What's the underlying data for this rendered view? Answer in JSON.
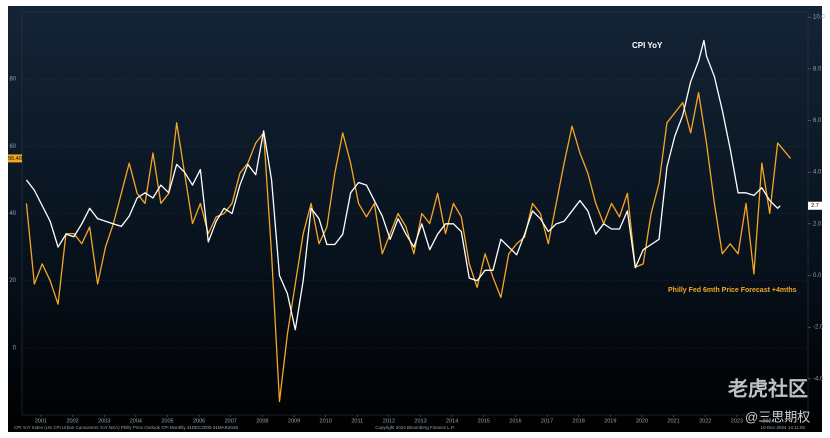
{
  "chart_data": {
    "type": "line",
    "xlim": [
      2000.9,
      2025.75
    ],
    "xticks": [
      {
        "value": 2001.5,
        "label": "2001"
      },
      {
        "value": 2002.5,
        "label": "2002"
      },
      {
        "value": 2003.5,
        "label": "2003"
      },
      {
        "value": 2004.5,
        "label": "2004"
      },
      {
        "value": 2005.5,
        "label": "2005"
      },
      {
        "value": 2006.5,
        "label": "2006"
      },
      {
        "value": 2007.5,
        "label": "2007"
      },
      {
        "value": 2008.5,
        "label": "2008"
      },
      {
        "value": 2009.5,
        "label": "2009"
      },
      {
        "value": 2010.5,
        "label": "2010"
      },
      {
        "value": 2011.5,
        "label": "2011"
      },
      {
        "value": 2012.5,
        "label": "2012"
      },
      {
        "value": 2013.5,
        "label": "2013"
      },
      {
        "value": 2014.5,
        "label": "2014"
      },
      {
        "value": 2015.5,
        "label": "2015"
      },
      {
        "value": 2016.5,
        "label": "2016"
      },
      {
        "value": 2017.5,
        "label": "2017"
      },
      {
        "value": 2018.5,
        "label": "2018"
      },
      {
        "value": 2019.5,
        "label": "2019"
      },
      {
        "value": 2020.5,
        "label": "2020"
      },
      {
        "value": 2021.5,
        "label": "2021"
      },
      {
        "value": 2022.5,
        "label": "2022"
      },
      {
        "value": 2023.5,
        "label": "2023"
      },
      {
        "value": 2024.5,
        "label": "2024"
      }
    ],
    "ylim": [
      -20,
      100
    ],
    "yticks": [
      0,
      20,
      40,
      60,
      80
    ],
    "y2lim": [
      -5.4,
      10.2
    ],
    "y2ticks": [
      {
        "value": -4,
        "label": "-4.0"
      },
      {
        "value": -2,
        "label": "-2.0"
      },
      {
        "value": 0,
        "label": "0.0"
      },
      {
        "value": 2,
        "label": "2.0"
      },
      {
        "value": 4,
        "label": "4.0"
      },
      {
        "value": 6,
        "label": "6.0"
      },
      {
        "value": 8,
        "label": "8.0"
      },
      {
        "value": 10,
        "label": "10.0"
      }
    ],
    "grid": true,
    "series": [
      {
        "name": "CPI YoY",
        "color": "#ffffff",
        "axis": "y2",
        "current": {
          "value": 2.7,
          "label": "2.7"
        },
        "x": [
          2001.04,
          2001.29,
          2001.54,
          2001.79,
          2002.04,
          2002.29,
          2002.54,
          2002.79,
          2003.04,
          2003.29,
          2003.54,
          2003.79,
          2004.04,
          2004.29,
          2004.54,
          2004.79,
          2005.04,
          2005.29,
          2005.54,
          2005.79,
          2006.04,
          2006.29,
          2006.54,
          2006.79,
          2007.04,
          2007.29,
          2007.54,
          2007.79,
          2008.04,
          2008.29,
          2008.54,
          2008.79,
          2009.04,
          2009.29,
          2009.54,
          2009.79,
          2010.04,
          2010.29,
          2010.54,
          2010.79,
          2011.04,
          2011.29,
          2011.54,
          2011.79,
          2012.04,
          2012.29,
          2012.54,
          2012.79,
          2013.04,
          2013.29,
          2013.54,
          2013.79,
          2014.04,
          2014.29,
          2014.54,
          2014.79,
          2015.04,
          2015.29,
          2015.54,
          2015.79,
          2016.04,
          2016.29,
          2016.54,
          2016.79,
          2017.04,
          2017.29,
          2017.54,
          2017.79,
          2018.04,
          2018.29,
          2018.54,
          2018.79,
          2019.04,
          2019.29,
          2019.54,
          2019.79,
          2020.04,
          2020.29,
          2020.54,
          2020.79,
          2021.04,
          2021.29,
          2021.54,
          2021.79,
          2022.04,
          2022.29,
          2022.46,
          2022.54,
          2022.79,
          2023.04,
          2023.29,
          2023.54,
          2023.79,
          2024.04,
          2024.29,
          2024.54,
          2024.79,
          2024.87
        ],
        "values": [
          3.7,
          3.3,
          2.7,
          2.1,
          1.1,
          1.6,
          1.5,
          2.0,
          2.6,
          2.2,
          2.1,
          2.0,
          1.9,
          2.3,
          3.0,
          3.2,
          3.0,
          3.5,
          3.2,
          4.3,
          4.0,
          3.5,
          4.1,
          1.3,
          2.1,
          2.6,
          2.4,
          3.5,
          4.3,
          3.9,
          5.6,
          3.7,
          0.0,
          -0.7,
          -2.1,
          -0.2,
          2.6,
          2.2,
          1.2,
          1.2,
          1.6,
          3.2,
          3.6,
          3.5,
          2.9,
          2.3,
          1.4,
          2.2,
          1.6,
          1.1,
          2.0,
          1.0,
          1.6,
          2.0,
          2.0,
          1.7,
          -0.1,
          -0.2,
          0.2,
          0.2,
          1.4,
          1.1,
          0.8,
          1.6,
          2.5,
          2.2,
          1.7,
          2.0,
          2.1,
          2.5,
          2.9,
          2.5,
          1.6,
          2.0,
          1.8,
          1.8,
          2.5,
          0.3,
          1.0,
          1.2,
          1.4,
          4.2,
          5.4,
          6.2,
          7.5,
          8.3,
          9.1,
          8.5,
          7.7,
          6.4,
          4.9,
          3.2,
          3.2,
          3.1,
          3.4,
          2.9,
          2.6,
          2.7
        ]
      },
      {
        "name": "Philly Fed 6mth Price Forecast +4mths",
        "color": "#f5a623",
        "axis": "y",
        "current": {
          "value": 56.4,
          "label": "56.40"
        },
        "x": [
          2001.04,
          2001.29,
          2001.54,
          2001.79,
          2002.04,
          2002.29,
          2002.54,
          2002.79,
          2003.04,
          2003.29,
          2003.54,
          2003.79,
          2004.04,
          2004.29,
          2004.54,
          2004.79,
          2005.04,
          2005.29,
          2005.54,
          2005.79,
          2006.04,
          2006.29,
          2006.54,
          2006.79,
          2007.04,
          2007.29,
          2007.54,
          2007.79,
          2008.04,
          2008.29,
          2008.54,
          2008.79,
          2009.04,
          2009.29,
          2009.54,
          2009.79,
          2010.04,
          2010.29,
          2010.54,
          2010.79,
          2011.04,
          2011.29,
          2011.54,
          2011.79,
          2012.04,
          2012.29,
          2012.54,
          2012.79,
          2013.04,
          2013.29,
          2013.54,
          2013.79,
          2014.04,
          2014.29,
          2014.54,
          2014.79,
          2015.04,
          2015.29,
          2015.54,
          2015.79,
          2016.04,
          2016.29,
          2016.54,
          2016.79,
          2017.04,
          2017.29,
          2017.54,
          2017.79,
          2018.04,
          2018.29,
          2018.54,
          2018.79,
          2019.04,
          2019.29,
          2019.54,
          2019.79,
          2020.04,
          2020.29,
          2020.54,
          2020.79,
          2021.04,
          2021.29,
          2021.54,
          2021.79,
          2022.04,
          2022.29,
          2022.54,
          2022.79,
          2023.04,
          2023.29,
          2023.54,
          2023.79,
          2024.04,
          2024.29,
          2024.54,
          2024.79,
          2025.2
        ],
        "values": [
          43,
          19,
          25,
          20,
          13,
          34,
          34,
          31,
          36,
          19,
          30,
          37,
          46,
          55,
          46,
          43,
          58,
          43,
          46,
          67,
          52,
          37,
          43,
          34,
          39,
          40,
          43,
          52,
          55,
          61,
          64,
          28,
          -16,
          4,
          19,
          34,
          43,
          31,
          36,
          52,
          64,
          55,
          43,
          39,
          43,
          28,
          34,
          40,
          36,
          28,
          40,
          37,
          46,
          34,
          43,
          39,
          25,
          18,
          28,
          21,
          15,
          28,
          31,
          33,
          43,
          40,
          31,
          43,
          55,
          66,
          58,
          52,
          43,
          37,
          43,
          39,
          46,
          24,
          25,
          40,
          49,
          67,
          70,
          73,
          64,
          76,
          61,
          43,
          28,
          31,
          28,
          43,
          22,
          55,
          40,
          61,
          56.4
        ]
      }
    ],
    "footnote": "CPI YoY Index (US CPI Urban Consumers YoY NSA) Philly Price Outlook CPI  Monthly 31DEC2000-31MAR2026",
    "copyright": "Copyright 2024 Bloomberg Finance L.P.",
    "timestamp": "10-Dec-2024 14:11:50",
    "watermark": [
      "老虎社区",
      "@三思期权"
    ]
  }
}
